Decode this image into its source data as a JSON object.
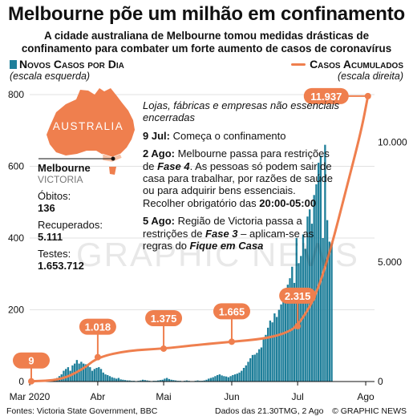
{
  "header": {
    "title": "Melbourne põe um milhão em confinamento",
    "subtitle_1": "A cidade australiana de Melbourne tomou medidas drásticas de",
    "subtitle_2": "confinamento para combater um forte aumento de casos de coronavírus"
  },
  "legend": {
    "left_name": "Novos Casos por Dia",
    "left_note": "(escala esquerda)",
    "right_name": "Casos Acumulados",
    "right_note": "(escala direita)"
  },
  "map": {
    "label": "AUSTRALIA",
    "land_color": "#ef7f4e"
  },
  "panel": {
    "name": "Melbourne",
    "sub": "VICTORIA",
    "deaths_label": "Óbitos:",
    "deaths_value": "136",
    "recovered_label": "Recuperados:",
    "recovered_value": "5.111",
    "tests_label": "Testes:",
    "tests_value": "1.653.712"
  },
  "annotations": {
    "intro": "Lojas, fábricas e empresas não essenciais encerradas",
    "jul9_date": "9 Jul:",
    "jul9_text": " Começa o confinamento",
    "aug2_date": "2 Ago:",
    "aug2_text_a": " Melbourne passa para restrições de ",
    "aug2_phase": "Fase 4",
    "aug2_text_b": ". As pessoas só podem sair de casa para trabalhar, por razões de saúde ou para adquirir bens essenciais. Recolher obrigatório das ",
    "aug2_curfew": "20:00-05:00",
    "aug5_date": "5 Ago:",
    "aug5_text_a": " Região de Victoria passa a restrições de ",
    "aug5_phase": "Fase 3",
    "aug5_text_b": " – aplicam-se as regras do ",
    "aug5_rule": "Fique em Casa"
  },
  "footer": {
    "sources": "Fontes: Victoria State Government, BBC",
    "date": "Dados das 21.30TMG, 2 Ago",
    "credit": "© GRAPHIC NEWS"
  },
  "watermark": "GRAPHIC NEWS",
  "chart_data": {
    "type": "bar",
    "bar_color": "#1f7f9a",
    "line_color": "#ef7f4e",
    "x_range": [
      "2020-03-01",
      "2020-08-05"
    ],
    "x_ticks": [
      {
        "date": "2020-03-01",
        "label": "Mar 2020"
      },
      {
        "date": "2020-04-01",
        "label": "Abr"
      },
      {
        "date": "2020-05-01",
        "label": "Mai"
      },
      {
        "date": "2020-06-01",
        "label": "Jun"
      },
      {
        "date": "2020-07-01",
        "label": "Jul"
      },
      {
        "date": "2020-08-01",
        "label": "Ago"
      }
    ],
    "y_left": {
      "ylim": [
        0,
        800
      ],
      "ticks": [
        0,
        200,
        400,
        600,
        800
      ],
      "tick_labels": [
        "0",
        "200",
        "400",
        "600",
        "800"
      ]
    },
    "y_right": {
      "ylim": [
        0,
        12000
      ],
      "ticks": [
        0,
        5000,
        10000
      ],
      "tick_labels": [
        "0",
        "5.000",
        "10.000"
      ]
    },
    "daily_cases": {
      "name": "Novos Casos por Dia",
      "axis": "left",
      "start_date": "2020-03-01",
      "values": [
        1,
        0,
        1,
        2,
        0,
        1,
        2,
        2,
        3,
        4,
        5,
        8,
        10,
        15,
        20,
        30,
        35,
        40,
        30,
        45,
        50,
        60,
        50,
        55,
        50,
        48,
        45,
        40,
        30,
        35,
        38,
        40,
        35,
        25,
        20,
        18,
        15,
        12,
        10,
        8,
        10,
        6,
        5,
        4,
        3,
        3,
        2,
        2,
        1,
        2,
        3,
        5,
        4,
        3,
        2,
        1,
        2,
        2,
        3,
        4,
        5,
        8,
        10,
        7,
        5,
        4,
        3,
        2,
        2,
        1,
        2,
        3,
        2,
        1,
        1,
        2,
        3,
        2,
        2,
        3,
        5,
        8,
        10,
        12,
        15,
        18,
        20,
        17,
        15,
        14,
        12,
        15,
        18,
        20,
        22,
        25,
        30,
        38,
        45,
        55,
        65,
        74,
        75,
        80,
        90,
        95,
        120,
        130,
        150,
        170,
        165,
        190,
        180,
        200,
        215,
        230,
        250,
        270,
        288,
        320,
        275,
        400,
        330,
        350,
        410,
        370,
        460,
        480,
        440,
        520,
        550,
        610,
        630,
        400,
        660,
        450,
        390,
        380
      ],
      "first_label": "9"
    },
    "cumulative": {
      "name": "Casos Acumulados",
      "axis": "right",
      "points": [
        {
          "date": "2020-03-01",
          "value": 9
        },
        {
          "date": "2020-03-15",
          "value": 60
        },
        {
          "date": "2020-03-25",
          "value": 500
        },
        {
          "date": "2020-04-01",
          "value": 1018
        },
        {
          "date": "2020-04-15",
          "value": 1300
        },
        {
          "date": "2020-05-01",
          "value": 1375
        },
        {
          "date": "2020-05-15",
          "value": 1520
        },
        {
          "date": "2020-06-01",
          "value": 1665
        },
        {
          "date": "2020-06-15",
          "value": 1780
        },
        {
          "date": "2020-06-25",
          "value": 2000
        },
        {
          "date": "2020-07-01",
          "value": 2315
        },
        {
          "date": "2020-07-09",
          "value": 3500
        },
        {
          "date": "2020-07-16",
          "value": 5500
        },
        {
          "date": "2020-07-23",
          "value": 8000
        },
        {
          "date": "2020-07-30",
          "value": 10500
        },
        {
          "date": "2020-08-02",
          "value": 11937
        }
      ],
      "callouts": [
        {
          "date": "2020-04-01",
          "value": 1018,
          "label": "1.018"
        },
        {
          "date": "2020-05-01",
          "value": 1375,
          "label": "1.375"
        },
        {
          "date": "2020-06-01",
          "value": 1665,
          "label": "1.665"
        },
        {
          "date": "2020-07-01",
          "value": 2315,
          "label": "2.315"
        },
        {
          "date": "2020-08-02",
          "value": 11937,
          "label": "11.937"
        }
      ]
    }
  }
}
